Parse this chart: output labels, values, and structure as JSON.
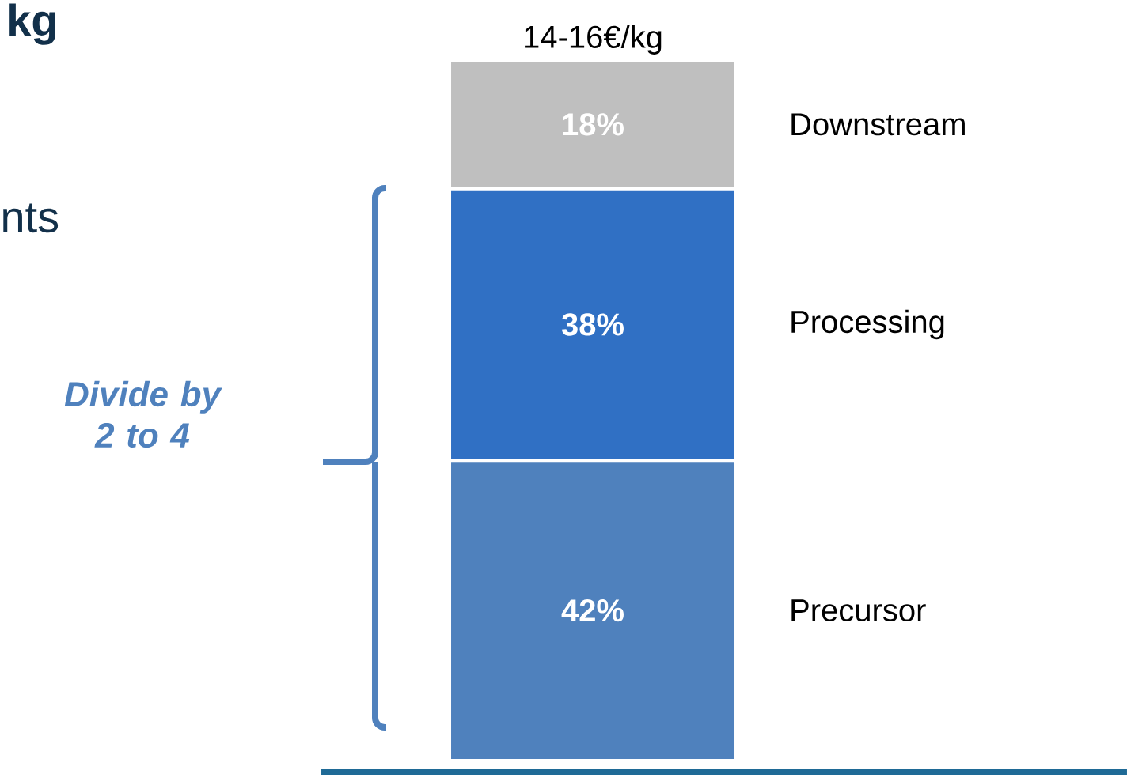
{
  "chart_data": {
    "type": "bar",
    "stacked": true,
    "legend": false,
    "categories": [
      null
    ],
    "series": [
      {
        "name": "Precursor",
        "color": "#4f81bd",
        "values": [
          42
        ],
        "value_labels": [
          "42%"
        ]
      },
      {
        "name": "Processing",
        "color": "#3070c4",
        "values": [
          38
        ],
        "value_labels": [
          "38%"
        ]
      },
      {
        "name": "Downstream",
        "color": "#bfbfbf",
        "values": [
          18
        ],
        "value_labels": [
          "18%"
        ]
      }
    ],
    "annotations": [
      "kg",
      "nts",
      "14-16€/kg",
      "Divide by 2 to 4"
    ]
  }
}
